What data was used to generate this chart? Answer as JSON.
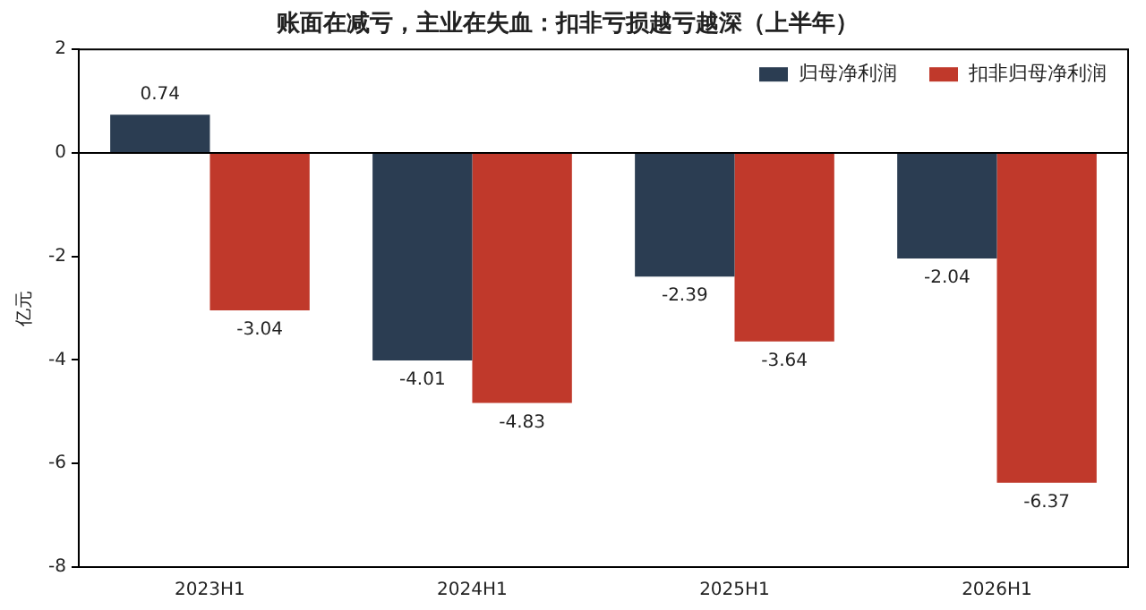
{
  "chart_data": {
    "type": "bar",
    "title": "账面在减亏，主业在失血：扣非亏损越亏越深（上半年）",
    "ylabel": "亿元",
    "categories": [
      "2023H1",
      "2024H1",
      "2025H1",
      "2026H1"
    ],
    "series": [
      {
        "name": "归母净利润",
        "color": "#2b3d52",
        "values": [
          0.74,
          -4.01,
          -2.39,
          -2.04
        ]
      },
      {
        "name": "扣非归母净利润",
        "color": "#c0392b",
        "values": [
          -3.04,
          -4.83,
          -3.64,
          -6.37
        ]
      }
    ],
    "ylim": [
      -8,
      2
    ],
    "yticks": [
      -8,
      -6,
      -4,
      -2,
      0,
      2
    ],
    "grid": false,
    "legend": "top right",
    "data_labels": true,
    "ref_lines": [
      {
        "axis": "y",
        "value": 0,
        "color": "#000000"
      }
    ]
  }
}
